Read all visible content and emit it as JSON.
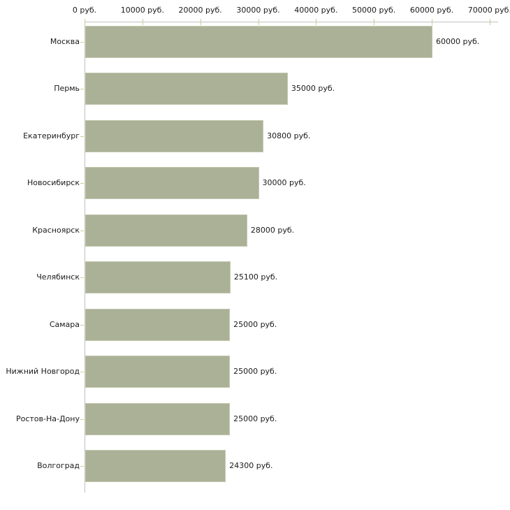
{
  "chart_data": {
    "type": "bar",
    "orientation": "horizontal",
    "title": "",
    "xlabel": "",
    "ylabel": "",
    "categories": [
      "Москва",
      "Пермь",
      "Екатеринбург",
      "Новосибирск",
      "Красноярск",
      "Челябинск",
      "Самара",
      "Нижний Новгород",
      "Ростов-На-Дону",
      "Волгоград"
    ],
    "values": [
      60000,
      35000,
      30800,
      30000,
      28000,
      25100,
      25000,
      25000,
      25000,
      24300
    ],
    "value_labels": [
      "60000 руб.",
      "35000 руб.",
      "30800 руб.",
      "30000 руб.",
      "28000 руб.",
      "25100 руб.",
      "25000 руб.",
      "25000 руб.",
      "25000 руб.",
      "24300 руб."
    ],
    "x_axis": {
      "position": "top",
      "min": 0,
      "max": 70000,
      "ticks": [
        0,
        10000,
        20000,
        30000,
        40000,
        50000,
        60000,
        70000
      ],
      "tick_labels": [
        "0 руб.",
        "10000 руб.",
        "20000 руб.",
        "30000 руб.",
        "40000 руб.",
        "50000 руб.",
        "60000 руб.",
        "70000 руб."
      ]
    },
    "legend": null,
    "grid": false,
    "colors": {
      "bar_fill": "#abb197",
      "bar_border": "#c2c7ae",
      "axis_line": "#c0c0c0",
      "tick_mark": "#cccc99",
      "text": "#1a1a1a",
      "background": "#ffffff"
    }
  }
}
